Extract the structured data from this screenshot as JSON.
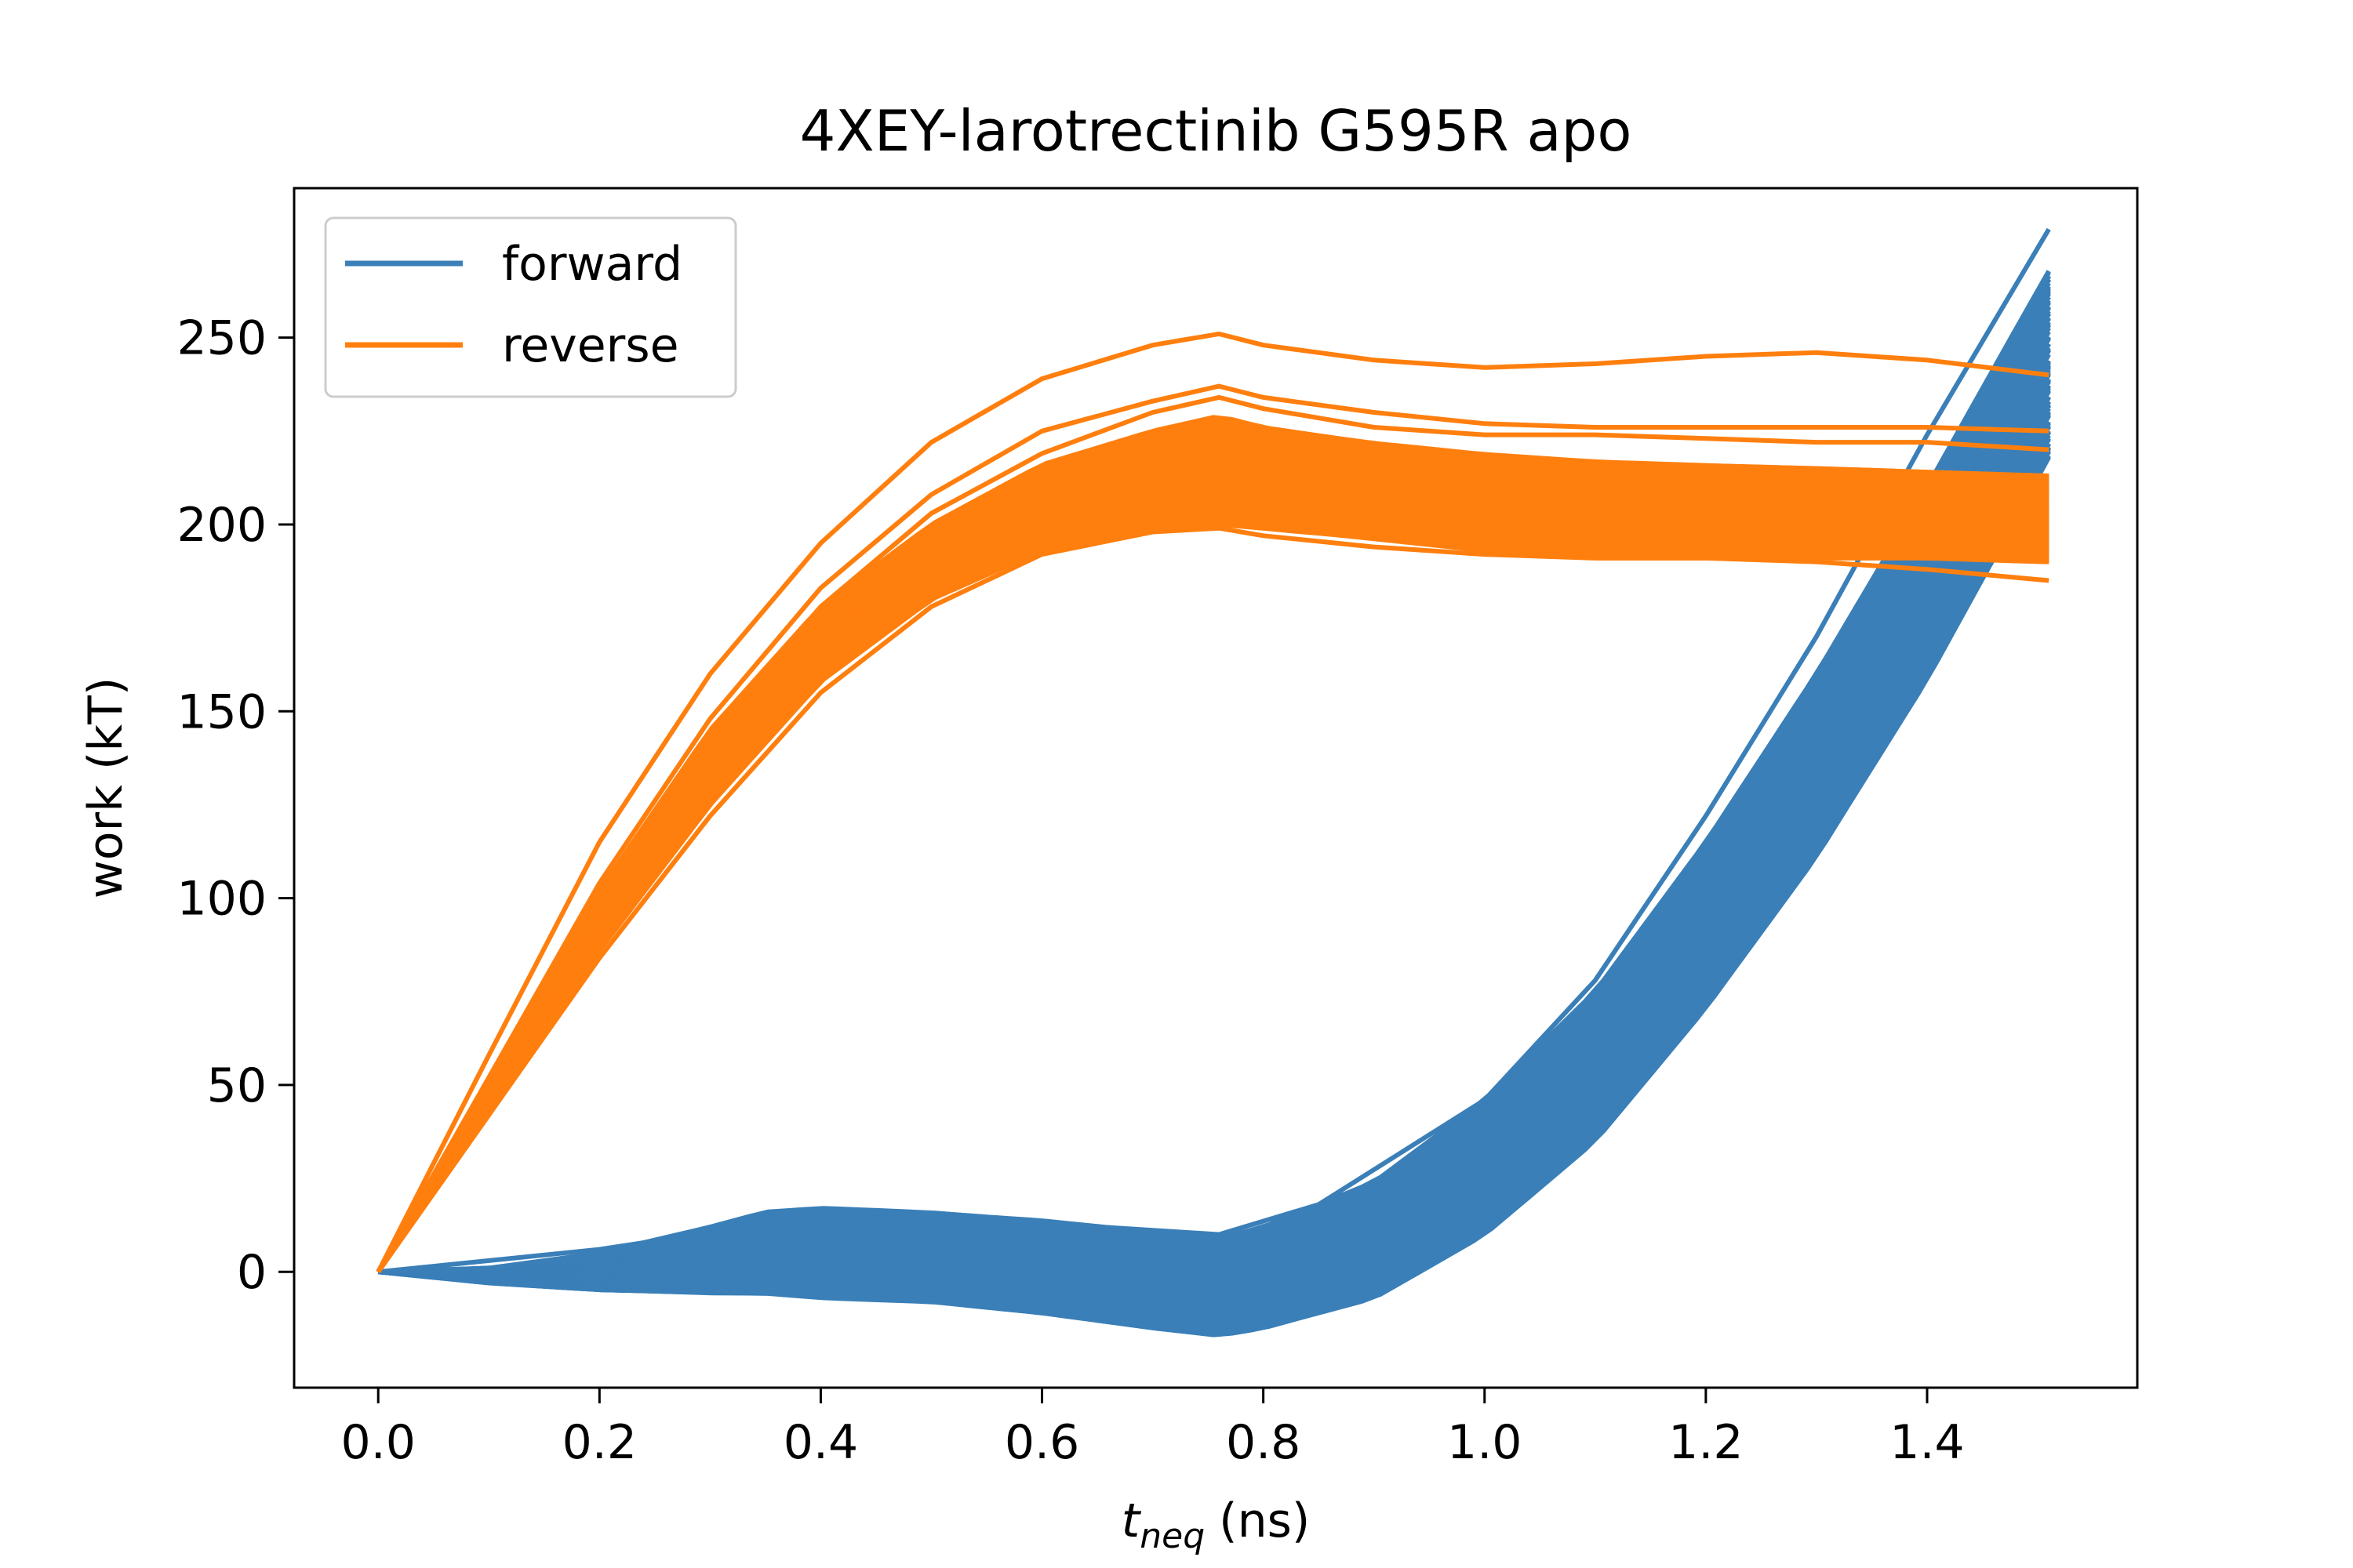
{
  "chart_data": {
    "type": "line",
    "title": "4XEY-larotrectinib G595R apo",
    "xlabel_main": "t",
    "xlabel_sub": "neq",
    "xlabel_unit": "(ns)",
    "ylabel": "work (kT)",
    "xlim": [
      -0.076,
      1.59
    ],
    "ylim": [
      -31,
      290
    ],
    "xticks": [
      0.0,
      0.2,
      0.4,
      0.6,
      0.8,
      1.0,
      1.2,
      1.4
    ],
    "xtick_labels": [
      "0.0",
      "0.2",
      "0.4",
      "0.6",
      "0.8",
      "1.0",
      "1.2",
      "1.4"
    ],
    "yticks": [
      0,
      50,
      100,
      150,
      200,
      250
    ],
    "ytick_labels": [
      "0",
      "50",
      "100",
      "150",
      "200",
      "250"
    ],
    "grid": false,
    "legend_position": "top-left",
    "series": [
      {
        "name": "forward",
        "color": "#3a7fb8",
        "num_trajectories": 100,
        "band_x": [
          0.0,
          0.1,
          0.2,
          0.3,
          0.35,
          0.4,
          0.5,
          0.6,
          0.7,
          0.76,
          0.8,
          0.9,
          1.0,
          1.1,
          1.2,
          1.3,
          1.4,
          1.51
        ],
        "band_upper": [
          0,
          1,
          5,
          12,
          16,
          17,
          16,
          14,
          11,
          9,
          12,
          24,
          46,
          75,
          115,
          160,
          210,
          268
        ],
        "band_lower": [
          0,
          -3,
          -5,
          -6,
          -6,
          -7,
          -8,
          -11,
          -15,
          -17,
          -15,
          -7,
          10,
          35,
          70,
          110,
          158,
          218
        ],
        "outlier_x": [
          0.0,
          0.2,
          0.4,
          0.6,
          0.76,
          0.85,
          1.0,
          1.1,
          1.2,
          1.3,
          1.4,
          1.51
        ],
        "outlier_y": [
          0,
          6,
          15,
          13,
          10,
          18,
          46,
          78,
          122,
          170,
          224,
          279
        ]
      },
      {
        "name": "reverse",
        "color": "#ff7f0e",
        "num_trajectories": 100,
        "band_x": [
          0.0,
          0.1,
          0.2,
          0.3,
          0.4,
          0.5,
          0.6,
          0.7,
          0.76,
          0.8,
          0.9,
          1.0,
          1.1,
          1.2,
          1.3,
          1.4,
          1.51
        ],
        "band_upper": [
          0,
          52,
          102,
          145,
          178,
          200,
          216,
          225,
          229,
          226,
          222,
          219,
          217,
          216,
          215,
          214,
          213
        ],
        "band_lower": [
          0,
          42,
          86,
          125,
          158,
          180,
          193,
          199,
          200,
          199,
          196,
          193,
          191,
          191,
          191,
          191,
          190
        ],
        "outlier_traces": [
          {
            "x": [
              0.0,
              0.1,
              0.2,
              0.3,
              0.4,
              0.5,
              0.6,
              0.7,
              0.76,
              0.8,
              0.9,
              1.0,
              1.1,
              1.2,
              1.3,
              1.4,
              1.51
            ],
            "y": [
              0,
              58,
              115,
              160,
              195,
              222,
              239,
              248,
              251,
              248,
              244,
              242,
              243,
              245,
              246,
              244,
              240
            ]
          },
          {
            "x": [
              0.0,
              0.1,
              0.2,
              0.3,
              0.4,
              0.5,
              0.6,
              0.7,
              0.76,
              0.8,
              0.9,
              1.0,
              1.1,
              1.2,
              1.3,
              1.4,
              1.51
            ],
            "y": [
              0,
              52,
              104,
              148,
              183,
              208,
              225,
              233,
              237,
              234,
              230,
              227,
              226,
              226,
              226,
              226,
              225
            ]
          },
          {
            "x": [
              0.0,
              0.1,
              0.2,
              0.3,
              0.4,
              0.5,
              0.6,
              0.7,
              0.76,
              0.8,
              0.9,
              1.0,
              1.1,
              1.2,
              1.3,
              1.4,
              1.51
            ],
            "y": [
              0,
              50,
              100,
              144,
              178,
              203,
              219,
              230,
              234,
              231,
              226,
              224,
              224,
              223,
              222,
              222,
              220
            ]
          },
          {
            "x": [
              0.0,
              0.1,
              0.2,
              0.3,
              0.4,
              0.5,
              0.6,
              0.7,
              0.76,
              0.8,
              0.9,
              1.0,
              1.1,
              1.2,
              1.3,
              1.4,
              1.51
            ],
            "y": [
              0,
              42,
              84,
              122,
              155,
              178,
              192,
              198,
              199,
              197,
              194,
              192,
              191,
              191,
              190,
              188,
              185
            ]
          }
        ]
      }
    ]
  }
}
